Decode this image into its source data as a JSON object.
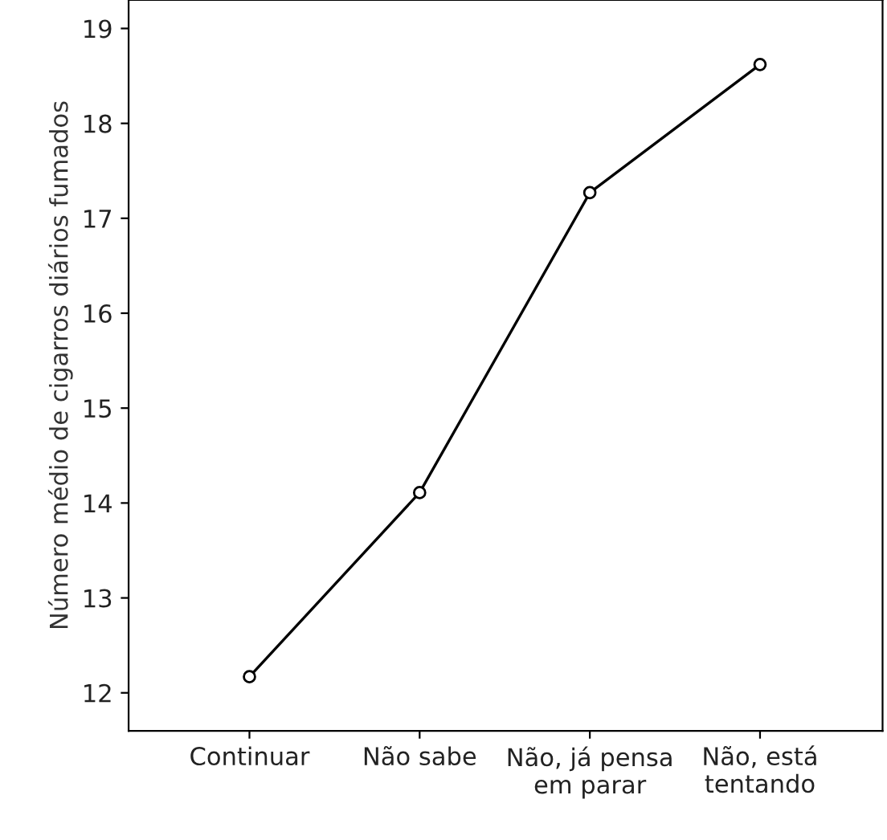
{
  "chart_data": {
    "type": "line",
    "ylabel": "Número médio de cigarros diários fumados",
    "categories": [
      "Continuar",
      "Não sabe",
      "Não, já pensa\nem parar",
      "Não, está\ntentando"
    ],
    "values": [
      12.17,
      14.11,
      17.27,
      18.62
    ],
    "color": "#000000",
    "marker": "circle",
    "line_style": "solid",
    "ylim": [
      11.6,
      19.3
    ],
    "yticks": [
      12,
      13,
      14,
      15,
      16,
      17,
      18,
      19
    ],
    "grid": false,
    "legend": false
  }
}
